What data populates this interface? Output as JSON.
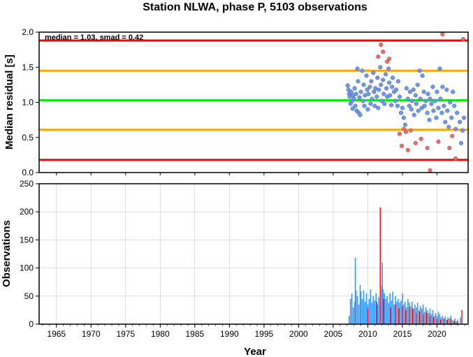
{
  "title": "Station NLWA, phase P, 5103 observations",
  "colors": {
    "accent_red": "#ff0000",
    "accent_orange": "#ffa500",
    "accent_green": "#00ee00",
    "point_blue": "#6699ff",
    "point_red": "#ff6666",
    "bar_blue": "#3399ff",
    "bar_red": "#ff0000"
  },
  "chart_data": [
    {
      "type": "scatter",
      "ylabel": "Median residual [s]",
      "xlim": [
        1962.5,
        2024.5
      ],
      "ylim": [
        0,
        2
      ],
      "yticks": [
        "0.0",
        "0.5",
        "1.0",
        "1.5",
        "2.0"
      ],
      "annotation": "median = 1.03, smad = 0.42",
      "hlines": [
        {
          "y": 1.88,
          "color": "#ff0000"
        },
        {
          "y": 1.45,
          "color": "#ffa500"
        },
        {
          "y": 1.03,
          "color": "#00ee00"
        },
        {
          "y": 0.61,
          "color": "#ffa500"
        },
        {
          "y": 0.18,
          "color": "#ff0000"
        }
      ],
      "series": [
        {
          "color": "#6699ff",
          "points": [
            [
              2007.1,
              1.24
            ],
            [
              2007.2,
              1.18
            ],
            [
              2007.3,
              1.12
            ],
            [
              2007.4,
              1.08
            ],
            [
              2007.5,
              0.98
            ],
            [
              2007.6,
              1.15
            ],
            [
              2007.7,
              1.02
            ],
            [
              2007.8,
              0.91
            ],
            [
              2007.9,
              1.1
            ],
            [
              2008.0,
              1.05
            ],
            [
              2008.1,
              1.2
            ],
            [
              2008.2,
              0.95
            ],
            [
              2008.3,
              1.12
            ],
            [
              2008.4,
              0.88
            ],
            [
              2008.5,
              1.48
            ],
            [
              2008.6,
              1.3
            ],
            [
              2008.7,
              0.85
            ],
            [
              2008.8,
              1.07
            ],
            [
              2008.9,
              0.82
            ],
            [
              2009.0,
              1.15
            ],
            [
              2009.2,
              1.45
            ],
            [
              2009.3,
              1.02
            ],
            [
              2009.4,
              1.25
            ],
            [
              2009.5,
              0.95
            ],
            [
              2009.6,
              1.1
            ],
            [
              2009.8,
              1.38
            ],
            [
              2009.9,
              1.18
            ],
            [
              2010.0,
              0.9
            ],
            [
              2010.1,
              1.12
            ],
            [
              2010.3,
              1.22
            ],
            [
              2010.4,
              0.98
            ],
            [
              2010.5,
              1.3
            ],
            [
              2010.6,
              1.05
            ],
            [
              2010.8,
              1.42
            ],
            [
              2010.9,
              1.15
            ],
            [
              2011.0,
              0.95
            ],
            [
              2011.1,
              1.2
            ],
            [
              2011.3,
              1.08
            ],
            [
              2011.4,
              1.35
            ],
            [
              2011.5,
              0.92
            ],
            [
              2011.6,
              1.18
            ],
            [
              2011.8,
              1.5
            ],
            [
              2011.9,
              1.25
            ],
            [
              2012.0,
              1.02
            ],
            [
              2012.2,
              1.32
            ],
            [
              2012.3,
              1.12
            ],
            [
              2012.4,
              0.98
            ],
            [
              2012.6,
              1.4
            ],
            [
              2012.7,
              1.2
            ],
            [
              2012.8,
              1.08
            ],
            [
              2013.0,
              1.48
            ],
            [
              2013.1,
              1.28
            ],
            [
              2013.2,
              1.1
            ],
            [
              2013.4,
              0.96
            ],
            [
              2013.5,
              1.22
            ],
            [
              2013.6,
              1.35
            ],
            [
              2013.8,
              1.15
            ],
            [
              2014.0,
              1.02
            ],
            [
              2014.1,
              1.18
            ],
            [
              2014.3,
              0.95
            ],
            [
              2014.4,
              1.3
            ],
            [
              2014.6,
              1.08
            ],
            [
              2014.8,
              0.85
            ],
            [
              2015.0,
              0.92
            ],
            [
              2015.2,
              0.78
            ],
            [
              2015.4,
              0.68
            ],
            [
              2015.6,
              1.2
            ],
            [
              2015.8,
              1.05
            ],
            [
              2016.0,
              0.95
            ],
            [
              2016.1,
              1.15
            ],
            [
              2016.3,
              0.9
            ],
            [
              2016.4,
              1.02
            ],
            [
              2016.6,
              1.18
            ],
            [
              2016.7,
              0.82
            ],
            [
              2016.9,
              1.1
            ],
            [
              2017.0,
              0.98
            ],
            [
              2017.2,
              1.25
            ],
            [
              2017.3,
              0.88
            ],
            [
              2017.5,
              1.45
            ],
            [
              2017.6,
              1.05
            ],
            [
              2017.8,
              0.92
            ],
            [
              2017.9,
              1.38
            ],
            [
              2018.1,
              1.15
            ],
            [
              2018.2,
              0.95
            ],
            [
              2018.4,
              1.02
            ],
            [
              2018.6,
              0.85
            ],
            [
              2018.7,
              1.12
            ],
            [
              2018.9,
              0.75
            ],
            [
              2019.0,
              1.05
            ],
            [
              2019.2,
              0.98
            ],
            [
              2019.4,
              1.22
            ],
            [
              2019.5,
              0.88
            ],
            [
              2019.7,
              1.02
            ],
            [
              2019.9,
              0.78
            ],
            [
              2020.0,
              1.15
            ],
            [
              2020.2,
              0.92
            ],
            [
              2020.4,
              1.48
            ],
            [
              2020.5,
              1.05
            ],
            [
              2020.7,
              0.85
            ],
            [
              2020.8,
              1.22
            ],
            [
              2021.0,
              0.95
            ],
            [
              2021.2,
              0.72
            ],
            [
              2021.4,
              1.18
            ],
            [
              2021.5,
              0.88
            ],
            [
              2021.7,
              0.65
            ],
            [
              2021.9,
              1.0
            ],
            [
              2022.1,
              0.78
            ],
            [
              2022.3,
              1.15
            ],
            [
              2022.5,
              0.95
            ],
            [
              2022.7,
              0.62
            ],
            [
              2022.9,
              0.85
            ],
            [
              2023.3,
              0.72
            ],
            [
              2023.5,
              0.42
            ],
            [
              2023.7,
              0.6
            ],
            [
              2023.9,
              0.78
            ]
          ]
        },
        {
          "color": "#ff6666",
          "points": [
            [
              2011.5,
              1.65
            ],
            [
              2011.9,
              1.82
            ],
            [
              2012.2,
              1.72
            ],
            [
              2012.8,
              1.58
            ],
            [
              2013.1,
              1.62
            ],
            [
              2014.6,
              0.55
            ],
            [
              2014.9,
              0.38
            ],
            [
              2015.2,
              0.62
            ],
            [
              2015.5,
              0.58
            ],
            [
              2015.8,
              0.32
            ],
            [
              2016.2,
              0.6
            ],
            [
              2016.9,
              0.42
            ],
            [
              2017.7,
              0.48
            ],
            [
              2018.6,
              0.35
            ],
            [
              2019.0,
              0.03
            ],
            [
              2020.2,
              0.44
            ],
            [
              2020.8,
              1.97
            ],
            [
              2021.8,
              0.35
            ],
            [
              2022.2,
              0.52
            ],
            [
              2022.7,
              0.2
            ],
            [
              2023.8,
              1.9
            ]
          ]
        }
      ]
    },
    {
      "type": "bar",
      "xlabel": "Year",
      "ylabel": "Observations",
      "xlim": [
        1962.5,
        2024.5
      ],
      "ylim": [
        0,
        250
      ],
      "yticks": [
        "0",
        "50",
        "100",
        "150",
        "200",
        "250"
      ],
      "xticks": [
        "1965",
        "1970",
        "1975",
        "1980",
        "1985",
        "1990",
        "1995",
        "2000",
        "2005",
        "2010",
        "2015",
        "2020"
      ],
      "series": [
        {
          "color": "#3399ff",
          "bars": [
            [
              2007.3,
              15
            ],
            [
              2007.5,
              45
            ],
            [
              2007.7,
              55
            ],
            [
              2007.9,
              30
            ],
            [
              2008.1,
              40
            ],
            [
              2008.2,
              118
            ],
            [
              2008.3,
              60
            ],
            [
              2008.5,
              50
            ],
            [
              2008.7,
              35
            ],
            [
              2008.9,
              70
            ],
            [
              2009.0,
              58
            ],
            [
              2009.2,
              45
            ],
            [
              2009.4,
              60
            ],
            [
              2009.6,
              40
            ],
            [
              2009.8,
              55
            ],
            [
              2010.0,
              35
            ],
            [
              2010.2,
              45
            ],
            [
              2010.4,
              62
            ],
            [
              2010.6,
              38
            ],
            [
              2010.8,
              50
            ],
            [
              2011.0,
              42
            ],
            [
              2011.2,
              55
            ],
            [
              2011.4,
              35
            ],
            [
              2011.6,
              48
            ],
            [
              2011.8,
              40
            ],
            [
              2012.0,
              68
            ],
            [
              2012.1,
              110
            ],
            [
              2012.2,
              62
            ],
            [
              2012.4,
              55
            ],
            [
              2012.6,
              45
            ],
            [
              2012.8,
              50
            ],
            [
              2013.0,
              38
            ],
            [
              2013.2,
              55
            ],
            [
              2013.4,
              42
            ],
            [
              2013.6,
              58
            ],
            [
              2013.8,
              35
            ],
            [
              2014.0,
              50
            ],
            [
              2014.2,
              40
            ],
            [
              2014.4,
              45
            ],
            [
              2014.6,
              38
            ],
            [
              2014.8,
              42
            ],
            [
              2015.0,
              55
            ],
            [
              2015.2,
              35
            ],
            [
              2015.4,
              40
            ],
            [
              2015.6,
              30
            ],
            [
              2015.8,
              45
            ],
            [
              2016.0,
              38
            ],
            [
              2016.2,
              32
            ],
            [
              2016.4,
              40
            ],
            [
              2016.6,
              28
            ],
            [
              2016.8,
              35
            ],
            [
              2017.0,
              30
            ],
            [
              2017.2,
              38
            ],
            [
              2017.4,
              25
            ],
            [
              2017.6,
              32
            ],
            [
              2017.8,
              28
            ],
            [
              2018.0,
              35
            ],
            [
              2018.2,
              22
            ],
            [
              2018.4,
              30
            ],
            [
              2018.6,
              25
            ],
            [
              2018.8,
              20
            ],
            [
              2019.0,
              28
            ],
            [
              2019.2,
              18
            ],
            [
              2019.4,
              25
            ],
            [
              2019.6,
              15
            ],
            [
              2019.8,
              20
            ],
            [
              2020.0,
              15
            ],
            [
              2020.2,
              22
            ],
            [
              2020.4,
              18
            ],
            [
              2020.6,
              12
            ],
            [
              2020.8,
              15
            ],
            [
              2021.0,
              10
            ],
            [
              2021.2,
              14
            ],
            [
              2021.4,
              8
            ],
            [
              2021.6,
              12
            ],
            [
              2021.8,
              10
            ],
            [
              2022.0,
              15
            ],
            [
              2022.2,
              8
            ],
            [
              2022.4,
              6
            ],
            [
              2022.6,
              10
            ],
            [
              2022.8,
              5
            ],
            [
              2023.0,
              8
            ],
            [
              2023.4,
              12
            ]
          ]
        },
        {
          "color": "#ff0000",
          "bars": [
            [
              2010.0,
              28
            ],
            [
              2011.3,
              40
            ],
            [
              2011.8,
              208
            ],
            [
              2012.3,
              45
            ],
            [
              2013.3,
              30
            ],
            [
              2014.0,
              35
            ],
            [
              2014.5,
              28
            ],
            [
              2015.0,
              32
            ],
            [
              2015.5,
              25
            ],
            [
              2016.0,
              30
            ],
            [
              2016.5,
              28
            ],
            [
              2017.0,
              20
            ],
            [
              2017.5,
              22
            ],
            [
              2018.0,
              18
            ],
            [
              2018.5,
              20
            ],
            [
              2019.0,
              15
            ],
            [
              2019.5,
              12
            ],
            [
              2020.0,
              10
            ],
            [
              2020.5,
              8
            ],
            [
              2021.0,
              10
            ],
            [
              2021.5,
              8
            ],
            [
              2022.0,
              10
            ],
            [
              2022.5,
              6
            ],
            [
              2023.0,
              5
            ],
            [
              2023.6,
              25
            ]
          ]
        }
      ]
    }
  ]
}
